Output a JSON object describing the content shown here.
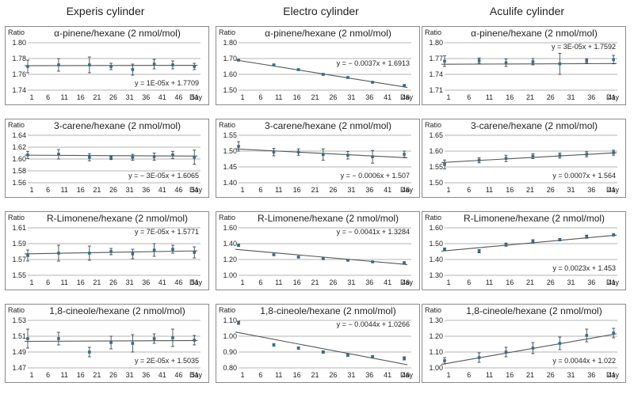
{
  "columns": [
    "Experis cylinder",
    "Electro cylinder",
    "Aculife cylinder"
  ],
  "chart_data": [
    {
      "type": "scatter",
      "column": "Experis cylinder",
      "title": "α-pinene/hexane (2 nmol/mol)",
      "ylabel": "Ratio",
      "xlabel": "Day",
      "x_ticks": [
        "1",
        "6",
        "11",
        "16",
        "21",
        "26",
        "31",
        "36",
        "41",
        "46",
        "51"
      ],
      "y_ticks": [
        "1.80",
        "1.78",
        "1.76",
        "1.74"
      ],
      "ylim": [
        1.74,
        1.8
      ],
      "xlim": [
        1,
        57
      ],
      "x": [
        1,
        11,
        21,
        28,
        35,
        42,
        48,
        55
      ],
      "values": [
        1.77,
        1.772,
        1.772,
        1.77,
        1.766,
        1.773,
        1.772,
        1.77
      ],
      "err": [
        0.008,
        0.008,
        0.01,
        0.004,
        0.007,
        0.006,
        0.005,
        0.004
      ],
      "trend": {
        "slope": 1e-05,
        "intercept": 1.7709
      },
      "equation": "y = 1E-05x + 1.7709",
      "eq_pos": "bottom-right"
    },
    {
      "type": "scatter",
      "column": "Electro cylinder",
      "title": "α-pinene/hexane (2 nmol/mol)",
      "ylabel": "Ratio",
      "xlabel": "Day",
      "x_ticks": [
        "1",
        "6",
        "11",
        "16",
        "21",
        "26",
        "31",
        "36",
        "41",
        "46"
      ],
      "y_ticks": [
        "1.80",
        "1.70",
        "1.60",
        "1.50"
      ],
      "ylim": [
        1.5,
        1.8
      ],
      "xlim": [
        1,
        50
      ],
      "x": [
        1,
        11,
        18,
        25,
        32,
        39,
        48
      ],
      "values": [
        1.69,
        1.66,
        1.63,
        1.6,
        1.58,
        1.55,
        1.53
      ],
      "err": [
        0.005,
        0.005,
        0.005,
        0.005,
        0.005,
        0.005,
        0.005
      ],
      "trend": {
        "slope": -0.0037,
        "intercept": 1.6913
      },
      "equation": "y = − 0.0037x + 1.6913",
      "eq_pos": "middle-right"
    },
    {
      "type": "scatter",
      "column": "Aculife cylinder",
      "title": "α-pinene/hexane (2 nmol/mol)",
      "ylabel": "Ratio",
      "xlabel": "Day",
      "x_ticks": [
        "1",
        "6",
        "11",
        "16",
        "21",
        "26",
        "31",
        "36",
        "41"
      ],
      "y_ticks": [
        "1.80",
        "1.77",
        "1.74",
        "1.71"
      ],
      "ylim": [
        1.71,
        1.8
      ],
      "xlim": [
        1,
        46
      ],
      "x": [
        1,
        10,
        17,
        24,
        31,
        38,
        45
      ],
      "values": [
        1.765,
        1.766,
        1.762,
        1.764,
        1.76,
        1.766,
        1.768
      ],
      "err": [
        0.01,
        0.005,
        0.007,
        0.006,
        0.02,
        0.004,
        0.008
      ],
      "trend": {
        "slope": 3e-05,
        "intercept": 1.7592
      },
      "equation": "y = 3E-05x + 1.7592",
      "eq_pos": "top-right"
    },
    {
      "type": "scatter",
      "column": "Experis cylinder",
      "title": "3-carene/hexane (2 nmol/mol)",
      "ylabel": "Ratio",
      "xlabel": "Day",
      "x_ticks": [
        "1",
        "6",
        "11",
        "16",
        "21",
        "26",
        "31",
        "36",
        "41",
        "46",
        "51"
      ],
      "y_ticks": [
        "1.64",
        "1.62",
        "1.60",
        "1.58",
        "1.56"
      ],
      "ylim": [
        1.56,
        1.64
      ],
      "xlim": [
        1,
        57
      ],
      "x": [
        1,
        11,
        21,
        28,
        35,
        42,
        48,
        55
      ],
      "values": [
        1.607,
        1.608,
        1.603,
        1.602,
        1.603,
        1.604,
        1.607,
        1.603
      ],
      "err": [
        0.006,
        0.008,
        0.006,
        0.003,
        0.005,
        0.006,
        0.006,
        0.012
      ],
      "trend": {
        "slope": -3e-05,
        "intercept": 1.6065
      },
      "equation": "y = − 3E-05x + 1.6065",
      "eq_pos": "bottom-right"
    },
    {
      "type": "scatter",
      "column": "Electro cylinder",
      "title": "3-carene/hexane (2 nmol/mol)",
      "ylabel": "Ratio",
      "xlabel": "Day",
      "x_ticks": [
        "1",
        "6",
        "11",
        "16",
        "21",
        "26",
        "31",
        "36",
        "41",
        "46"
      ],
      "y_ticks": [
        "1.55",
        "1.50",
        "1.45",
        "1.40"
      ],
      "ylim": [
        1.4,
        1.55
      ],
      "xlim": [
        1,
        50
      ],
      "x": [
        1,
        11,
        18,
        25,
        32,
        39,
        48
      ],
      "values": [
        1.515,
        1.497,
        1.497,
        1.489,
        1.487,
        1.482,
        1.49
      ],
      "err": [
        0.015,
        0.012,
        0.01,
        0.018,
        0.012,
        0.02,
        0.01
      ],
      "trend": {
        "slope": -0.0006,
        "intercept": 1.507
      },
      "equation": "y = − 0.0006x + 1.507",
      "eq_pos": "bottom-right"
    },
    {
      "type": "scatter",
      "column": "Aculife cylinder",
      "title": "3-carene/hexane (2 nmol/mol)",
      "ylabel": "Ratio",
      "xlabel": "Day",
      "x_ticks": [
        "1",
        "6",
        "11",
        "16",
        "21",
        "26",
        "31",
        "36",
        "41"
      ],
      "y_ticks": [
        "1.65",
        "1.60",
        "1.55",
        "1.50"
      ],
      "ylim": [
        1.5,
        1.65
      ],
      "xlim": [
        1,
        46
      ],
      "x": [
        1,
        10,
        17,
        24,
        31,
        38,
        45
      ],
      "values": [
        1.558,
        1.571,
        1.577,
        1.584,
        1.586,
        1.59,
        1.595
      ],
      "err": [
        0.014,
        0.008,
        0.01,
        0.008,
        0.008,
        0.008,
        0.008
      ],
      "trend": {
        "slope": 0.0007,
        "intercept": 1.564
      },
      "equation": "y = 0.0007x + 1.564",
      "eq_pos": "bottom-right"
    },
    {
      "type": "scatter",
      "column": "Experis cylinder",
      "title": "R-Limonene/hexane (2 nmol/mol)",
      "ylabel": "Ratio",
      "xlabel": "Day",
      "x_ticks": [
        "1",
        "6",
        "11",
        "16",
        "21",
        "26",
        "31",
        "36",
        "41",
        "46",
        "51"
      ],
      "y_ticks": [
        "1.61",
        "1.59",
        "1.57",
        "1.55"
      ],
      "ylim": [
        1.55,
        1.61
      ],
      "xlim": [
        1,
        57
      ],
      "x": [
        1,
        11,
        21,
        28,
        35,
        42,
        48,
        55
      ],
      "values": [
        1.575,
        1.578,
        1.578,
        1.58,
        1.577,
        1.582,
        1.583,
        1.579
      ],
      "err": [
        0.007,
        0.01,
        0.009,
        0.004,
        0.006,
        0.008,
        0.005,
        0.007
      ],
      "trend": {
        "slope": 7e-05,
        "intercept": 1.5771
      },
      "equation": "y = 7E-05x + 1.5771",
      "eq_pos": "top-right"
    },
    {
      "type": "scatter",
      "column": "Electro cylinder",
      "title": "R-Limonene/hexane (2 nmol/mol)",
      "ylabel": "Ratio",
      "xlabel": "Day",
      "x_ticks": [
        "1",
        "6",
        "11",
        "16",
        "21",
        "26",
        "31",
        "36",
        "41",
        "46"
      ],
      "y_ticks": [
        "1.60",
        "1.40",
        "1.20",
        "1.00"
      ],
      "ylim": [
        1.0,
        1.6
      ],
      "xlim": [
        1,
        50
      ],
      "x": [
        1,
        11,
        18,
        25,
        32,
        39,
        48
      ],
      "values": [
        1.38,
        1.26,
        1.23,
        1.21,
        1.19,
        1.17,
        1.16
      ],
      "err": [
        0.015,
        0.008,
        0.008,
        0.008,
        0.008,
        0.008,
        0.01
      ],
      "trend": {
        "slope": -0.0041,
        "intercept": 1.3284
      },
      "equation": "y = − 0.0041x + 1.3284",
      "eq_pos": "top-right"
    },
    {
      "type": "scatter",
      "column": "Aculife cylinder",
      "title": "R-Limonene/hexane (2 nmol/mol)",
      "ylabel": "Ratio",
      "xlabel": "Day",
      "x_ticks": [
        "1",
        "6",
        "11",
        "16",
        "21",
        "26",
        "31",
        "36",
        "41"
      ],
      "y_ticks": [
        "1.60",
        "1.50",
        "1.40",
        "1.30"
      ],
      "ylim": [
        1.3,
        1.6
      ],
      "xlim": [
        1,
        46
      ],
      "x": [
        1,
        10,
        17,
        24,
        31,
        38,
        45
      ],
      "values": [
        1.465,
        1.452,
        1.494,
        1.515,
        1.525,
        1.544,
        1.556
      ],
      "err": [
        0.008,
        0.01,
        0.01,
        0.01,
        0.008,
        0.01,
        0.008
      ],
      "trend": {
        "slope": 0.0023,
        "intercept": 1.453
      },
      "equation": "y = 0.0023x + 1.453",
      "eq_pos": "bottom-right"
    },
    {
      "type": "scatter",
      "column": "Experis cylinder",
      "title": "1,8-cineole/hexane (2 nmol/mol)",
      "ylabel": "Ratio",
      "xlabel": "Day",
      "x_ticks": [
        "1",
        "6",
        "11",
        "16",
        "21",
        "26",
        "31",
        "36",
        "41",
        "46",
        "51"
      ],
      "y_ticks": [
        "1.53",
        "1.51",
        "1.49",
        "1.47"
      ],
      "ylim": [
        1.47,
        1.53
      ],
      "xlim": [
        1,
        57
      ],
      "x": [
        1,
        11,
        21,
        28,
        35,
        42,
        48,
        55
      ],
      "values": [
        1.507,
        1.507,
        1.49,
        1.502,
        1.501,
        1.507,
        1.508,
        1.505
      ],
      "err": [
        0.012,
        0.008,
        0.006,
        0.008,
        0.011,
        0.006,
        0.011,
        0.006
      ],
      "trend": {
        "slope": 2e-05,
        "intercept": 1.5035
      },
      "equation": "y = 2E-05x + 1.5035",
      "eq_pos": "bottom-right"
    },
    {
      "type": "scatter",
      "column": "Electro cylinder",
      "title": "1,8-cineole/hexane (2 nmol/mol)",
      "ylabel": "Ratio",
      "xlabel": "Day",
      "x_ticks": [
        "1",
        "6",
        "11",
        "16",
        "21",
        "26",
        "31",
        "36",
        "41",
        "46"
      ],
      "y_ticks": [
        "1.10",
        "1.00",
        "0.90",
        "0.80"
      ],
      "ylim": [
        0.8,
        1.1
      ],
      "xlim": [
        1,
        50
      ],
      "x": [
        1,
        11,
        18,
        25,
        32,
        39,
        48
      ],
      "values": [
        1.085,
        0.945,
        0.925,
        0.9,
        0.88,
        0.87,
        0.86
      ],
      "err": [
        0.01,
        0.008,
        0.008,
        0.008,
        0.008,
        0.008,
        0.01
      ],
      "trend": {
        "slope": -0.0044,
        "intercept": 1.0266
      },
      "equation": "y = − 0.0044x + 1.0266",
      "eq_pos": "top-right"
    },
    {
      "type": "scatter",
      "column": "Aculife cylinder",
      "title": "1,8-cineole/hexane (2 nmol/mol)",
      "ylabel": "Ratio",
      "xlabel": "Day",
      "x_ticks": [
        "1",
        "6",
        "11",
        "16",
        "21",
        "26",
        "31",
        "36",
        "41"
      ],
      "y_ticks": [
        "1.30",
        "1.20",
        "1.10",
        "1.00"
      ],
      "ylim": [
        1.0,
        1.3
      ],
      "xlim": [
        1,
        46
      ],
      "x": [
        1,
        10,
        17,
        24,
        31,
        38,
        45
      ],
      "values": [
        1.045,
        1.065,
        1.1,
        1.125,
        1.155,
        1.205,
        1.22
      ],
      "err": [
        0.02,
        0.03,
        0.03,
        0.035,
        0.04,
        0.04,
        0.03
      ],
      "trend": {
        "slope": 0.0044,
        "intercept": 1.022
      },
      "equation": "y = 0.0044x + 1.022",
      "eq_pos": "bottom-right"
    }
  ]
}
